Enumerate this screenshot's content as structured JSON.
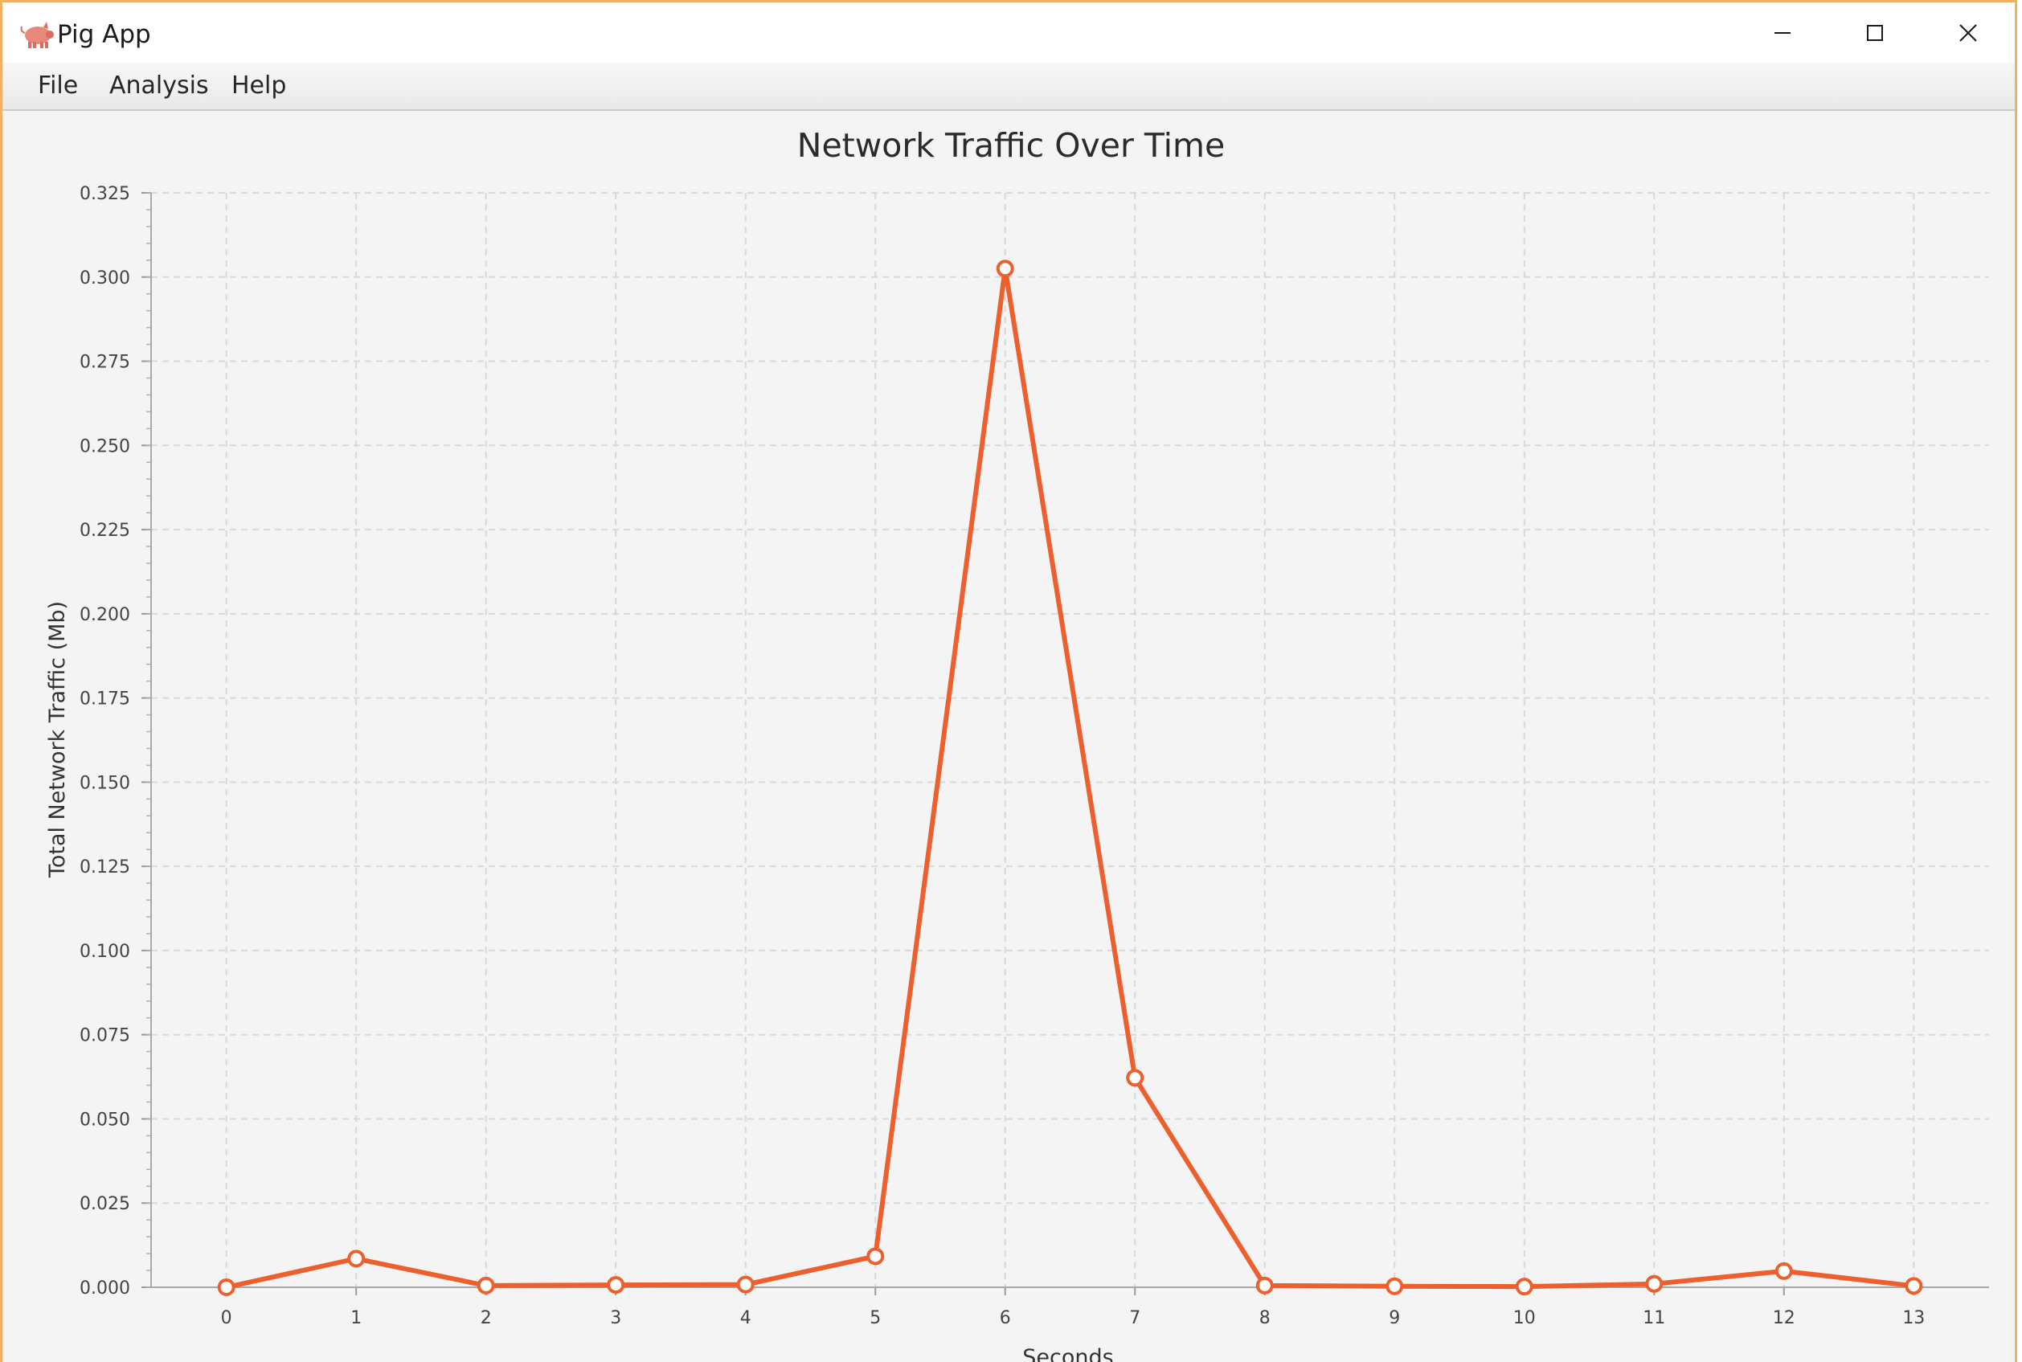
{
  "window": {
    "title": "Pig App",
    "icon": "pig-icon",
    "controls": [
      "minimize-icon",
      "maximize-icon",
      "close-icon"
    ]
  },
  "menu": {
    "file": "File",
    "analysis": "Analysis",
    "help": "Help"
  },
  "colors": {
    "series": "#ee5f2e",
    "background": "#f4f4f4",
    "grid": "#d9d9d9",
    "window_border": "#f0b165"
  },
  "chart_data": {
    "type": "line",
    "title": "Network Traffic Over Time",
    "xlabel": "Seconds",
    "ylabel": "Total Network Traffic (Mb)",
    "x": [
      0,
      1,
      2,
      3,
      4,
      5,
      6,
      7,
      8,
      9,
      10,
      11,
      12,
      13
    ],
    "values": [
      0.0,
      0.0085,
      0.0005,
      0.0007,
      0.0008,
      0.0092,
      0.3025,
      0.0622,
      0.0005,
      0.0003,
      0.0002,
      0.001,
      0.0048,
      0.0004
    ],
    "xlim": [
      -0.58,
      13.58
    ],
    "ylim": [
      0,
      0.325
    ],
    "x_ticks": [
      "0",
      "1",
      "2",
      "3",
      "4",
      "5",
      "6",
      "7",
      "8",
      "9",
      "10",
      "11",
      "12",
      "13"
    ],
    "y_ticks": [
      "0.000",
      "0.025",
      "0.050",
      "0.075",
      "0.100",
      "0.125",
      "0.150",
      "0.175",
      "0.200",
      "0.225",
      "0.250",
      "0.275",
      "0.300",
      "0.325"
    ],
    "grid": true,
    "legend": "none"
  }
}
